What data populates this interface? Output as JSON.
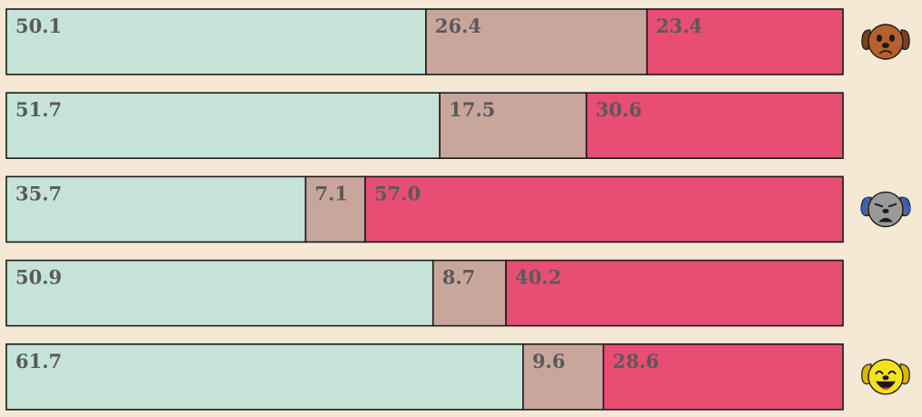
{
  "chart_data": {
    "type": "bar",
    "orientation": "horizontal",
    "stacked": true,
    "normalized_to": 100,
    "title": "",
    "xlabel": "",
    "ylabel": "",
    "rows": [
      {
        "values": [
          50.1,
          26.4,
          23.4
        ],
        "labels": [
          "50.1",
          "26.4",
          "23.4"
        ],
        "icon": "sad-brown-dog-icon"
      },
      {
        "values": [
          51.7,
          17.5,
          30.6
        ],
        "labels": [
          "51.7",
          "17.5",
          "30.6"
        ],
        "icon": ""
      },
      {
        "values": [
          35.7,
          7.1,
          57.0
        ],
        "labels": [
          "35.7",
          "7.1",
          "57.0"
        ],
        "icon": "crying-gray-dog-icon"
      },
      {
        "values": [
          50.9,
          8.7,
          40.2
        ],
        "labels": [
          "50.9",
          "8.7",
          "40.2"
        ],
        "icon": ""
      },
      {
        "values": [
          61.7,
          9.6,
          28.6
        ],
        "labels": [
          "61.7",
          "9.6",
          "28.6"
        ],
        "icon": "laughing-yellow-dog-icon"
      }
    ],
    "segment_colors": [
      "#c5e4d7",
      "#c9a69c",
      "#e84d74"
    ],
    "grid": false,
    "legend": "none"
  }
}
